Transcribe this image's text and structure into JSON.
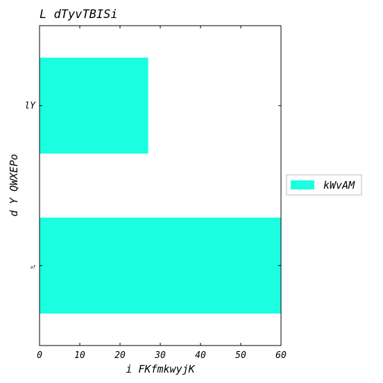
{
  "chart_data": {
    "type": "bar",
    "orientation": "horizontal",
    "title": "L  dTyvTBISi",
    "xlabel": "i FKfmkwyjK",
    "ylabel": "d Y  QWXEPo",
    "categories": [
      "af",
      "lY"
    ],
    "series": [
      {
        "name": "kWvAM",
        "values": [
          60,
          27
        ],
        "color": "#19ffe0"
      }
    ],
    "xlim": [
      0,
      60
    ],
    "xticks": [
      0,
      10,
      20,
      30,
      40,
      50,
      60
    ],
    "grid": false,
    "legend_position": "right"
  }
}
